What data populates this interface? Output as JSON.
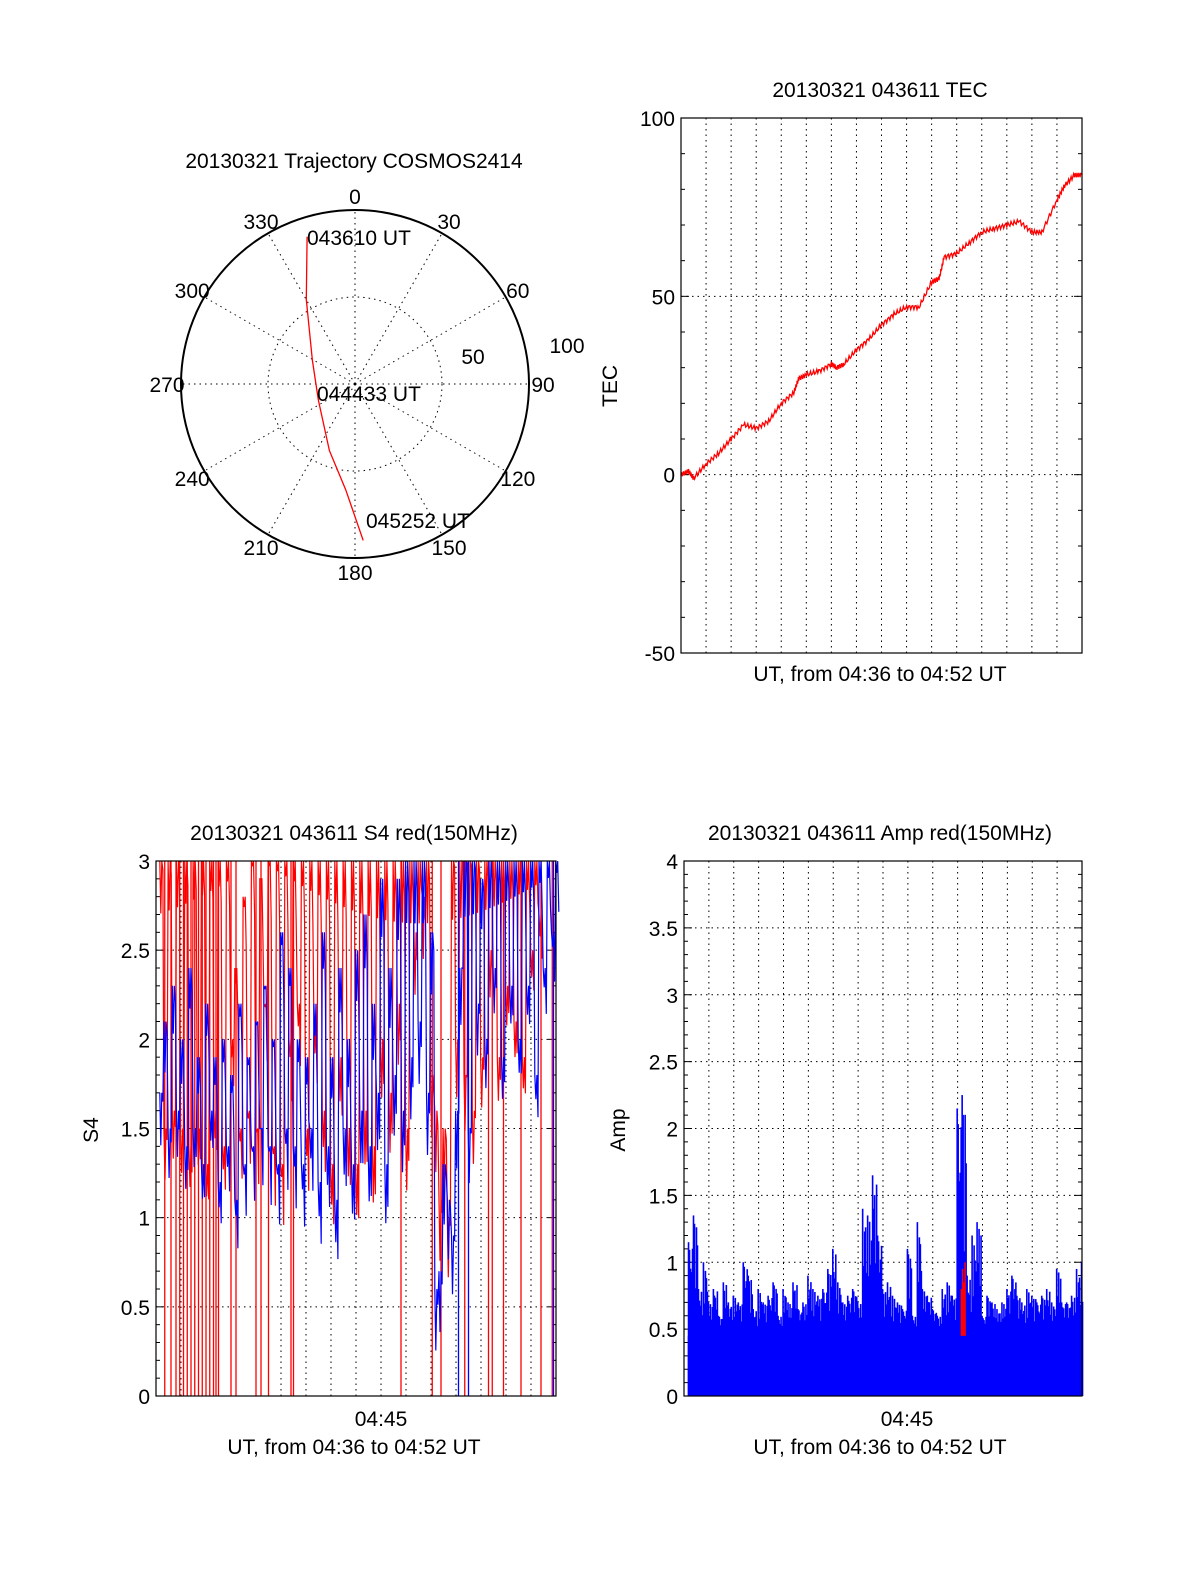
{
  "chart_data": [
    {
      "type": "polar",
      "title": "20130321 Trajectory COSMOS2414",
      "azimuth_labels": [
        "0",
        "30",
        "60",
        "90",
        "120",
        "150",
        "180",
        "210",
        "240",
        "270",
        "300",
        "330"
      ],
      "radial_labels": [
        "50",
        "100"
      ],
      "rlim": [
        0,
        100
      ],
      "series": [
        {
          "name": "trajectory",
          "color": "#ff0000",
          "points": [
            {
              "az": 342,
              "r": 89
            },
            {
              "az": 330,
              "r": 56
            },
            {
              "az": 299,
              "r": 28
            },
            {
              "az": 246,
              "r": 23
            },
            {
              "az": 201,
              "r": 41
            },
            {
              "az": 185,
              "r": 61
            },
            {
              "az": 177,
              "r": 90
            }
          ]
        }
      ],
      "annotations": [
        "043610 UT",
        "044433 UT",
        "045252 UT"
      ]
    },
    {
      "type": "line",
      "title": "20130321 043611 TEC",
      "xlabel": "UT, from 04:36 to 04:52 UT",
      "ylabel": "TEC",
      "xlim": [
        0,
        16
      ],
      "ylim": [
        -50,
        100
      ],
      "yticks": [
        "100",
        "50",
        "0",
        "-50"
      ],
      "grid": true,
      "series": [
        {
          "name": "TEC",
          "color": "#ff0000",
          "x": [
            0,
            0.3,
            0.5,
            1,
            1.5,
            2,
            2.5,
            3,
            3.5,
            4,
            4.5,
            4.7,
            5,
            5.5,
            6,
            6.2,
            6.5,
            7,
            7.5,
            8,
            8.5,
            9,
            9.5,
            10,
            10.3,
            10.5,
            11,
            11.5,
            12,
            12.5,
            13,
            13.5,
            14,
            14.4,
            15,
            15.3,
            15.7,
            16
          ],
          "y": [
            0,
            1,
            -1,
            3,
            6,
            10,
            14,
            13,
            15,
            20,
            23,
            27,
            28,
            29,
            31,
            30,
            31,
            35,
            38,
            42,
            45,
            47,
            47,
            54,
            55,
            61,
            62,
            65,
            68,
            69,
            70,
            71,
            68,
            68,
            77,
            81,
            84,
            84
          ]
        }
      ]
    },
    {
      "type": "line",
      "title": "20130321 043611 S4 red(150MHz)",
      "xlabel": "UT, from 04:36 to 04:52 UT",
      "ylabel": "S4",
      "xtick_label": "04:45",
      "xlim": [
        0,
        16
      ],
      "ylim": [
        0,
        3
      ],
      "yticks": [
        "3",
        "2.5",
        "2",
        "1.5",
        "1",
        "0.5",
        "0"
      ],
      "grid": true,
      "series": [
        {
          "name": "red",
          "color": "#ff0000",
          "x_step_min": 0.1667,
          "values": [
            3,
            1.5,
            3,
            1.6,
            3,
            1.5,
            3,
            1.4,
            3,
            1.5,
            3,
            1.3,
            3,
            1.6,
            3,
            1.4,
            3,
            2.0,
            2.4,
            1.5,
            2.8,
            1.6,
            3,
            1.5,
            2.9,
            2.2,
            3,
            1.4,
            3,
            1.3,
            3,
            2.0,
            3,
            2.2,
            3,
            1.5,
            3,
            2.1,
            3,
            1.6,
            3,
            1.3,
            3,
            1.9,
            3,
            1.5,
            3,
            1.3,
            3,
            1.6,
            3,
            1.4,
            3,
            2.0,
            3,
            1.7,
            3,
            2.2,
            3,
            1.5,
            3,
            2.6,
            3,
            2.8,
            3,
            1.8,
            1.6,
            1.1,
            1.5,
            1.0,
            3,
            2.0,
            3,
            1.8,
            3,
            1.6,
            3,
            1.9,
            3,
            2.5,
            3,
            1.9,
            3,
            2.3,
            3,
            2.1,
            3,
            1.9,
            3,
            2.5,
            3,
            2.7
          ],
          "spikes_to_zero_min": [
            0.35,
            0.6,
            0.8,
            0.95,
            1.1,
            1.25,
            1.4,
            1.55,
            1.7,
            1.85,
            2.0,
            2.15,
            2.3,
            2.4,
            2.5,
            3.0,
            3.2,
            4.0,
            4.2,
            4.5,
            5.4,
            5.5,
            9.8,
            11.05,
            11.4,
            12.35,
            13.3,
            13.45,
            13.9,
            14.6,
            15.4,
            15.85
          ]
        },
        {
          "name": "blue",
          "color": "#0000ff",
          "x_step_min": 0.1667,
          "values": [
            1.7,
            2.1,
            1.5,
            2.3,
            1.6,
            2.0,
            1.4,
            2.4,
            1.5,
            1.9,
            1.3,
            2.2,
            1.6,
            1.9,
            1.2,
            2.0,
            1.4,
            1.8,
            1.1,
            2.2,
            1.3,
            1.9,
            1.4,
            2.1,
            1.5,
            2.3,
            1.4,
            2.0,
            1.3,
            2.6,
            1.5,
            2.4,
            1.4,
            2.0,
            1.3,
            1.9,
            1.5,
            2.2,
            1.2,
            2.6,
            1.4,
            1.9,
            1.1,
            2.4,
            1.5,
            2.0,
            1.3,
            2.5,
            1.6,
            2.7,
            1.4,
            2.2,
            1.7,
            2.9,
            1.3,
            2.4,
            1.8,
            2.9,
            1.6,
            3.0,
            1.9,
            3.0,
            2.1,
            3.0,
            1.7,
            2.6,
            0.6,
            0.7,
            1.3,
            1.1,
            0.9,
            1.6,
            2.4,
            3.0,
            1.5,
            3.0,
            2.2,
            2.9,
            2.0,
            3.0,
            2.4,
            3.0,
            1.9,
            3.0,
            2.3,
            3.0,
            2.0,
            3.0,
            2.3,
            3.0,
            1.8,
            3.0,
            2.4,
            3.0,
            2.6,
            3.0
          ],
          "spikes_to_zero_min": [
            12.1,
            12.5,
            15.9
          ]
        }
      ]
    },
    {
      "type": "bar",
      "title": "20130321 043611 Amp red(150MHz)",
      "xlabel": "UT, from 04:36 to 04:52 UT",
      "ylabel": "Amp",
      "xtick_label": "04:45",
      "xlim": [
        0,
        16
      ],
      "ylim": [
        0,
        4
      ],
      "yticks": [
        "4",
        "3.5",
        "3",
        "2.5",
        "2",
        "1.5",
        "1",
        "0.5",
        "0"
      ],
      "grid": true,
      "series": [
        {
          "name": "blue",
          "color": "#0000ff",
          "x_step_min": 0.2,
          "values": [
            1.15,
            1.35,
            0.8,
            1.0,
            0.7,
            0.8,
            0.6,
            0.85,
            0.7,
            0.75,
            0.7,
            1.0,
            0.9,
            0.65,
            0.8,
            0.7,
            0.75,
            0.85,
            0.6,
            0.8,
            0.7,
            0.85,
            0.65,
            0.7,
            0.9,
            0.8,
            0.75,
            0.8,
            0.95,
            1.1,
            0.85,
            0.7,
            0.75,
            0.8,
            0.7,
            1.4,
            1.35,
            1.65,
            1.2,
            0.8,
            0.85,
            0.75,
            0.7,
            0.65,
            1.1,
            0.6,
            1.3,
            0.8,
            0.75,
            0.65,
            0.6,
            0.8,
            0.85,
            0.75,
            2.15,
            2.25,
            0.9,
            1.2,
            1.3,
            0.6,
            0.75,
            0.7,
            0.65,
            0.7,
            0.8,
            0.9,
            0.75,
            0.7,
            0.8,
            0.75,
            0.7,
            0.75,
            0.8,
            0.7,
            0.95,
            0.7,
            0.7,
            0.75,
            0.95,
            1.0
          ]
        },
        {
          "name": "red",
          "color": "#ff0000",
          "x": [
            11.15,
            11.2,
            11.25,
            11.3
          ],
          "values": [
            0.8,
            0.95,
            0.85,
            1.0
          ],
          "base": 0.45
        }
      ]
    }
  ]
}
